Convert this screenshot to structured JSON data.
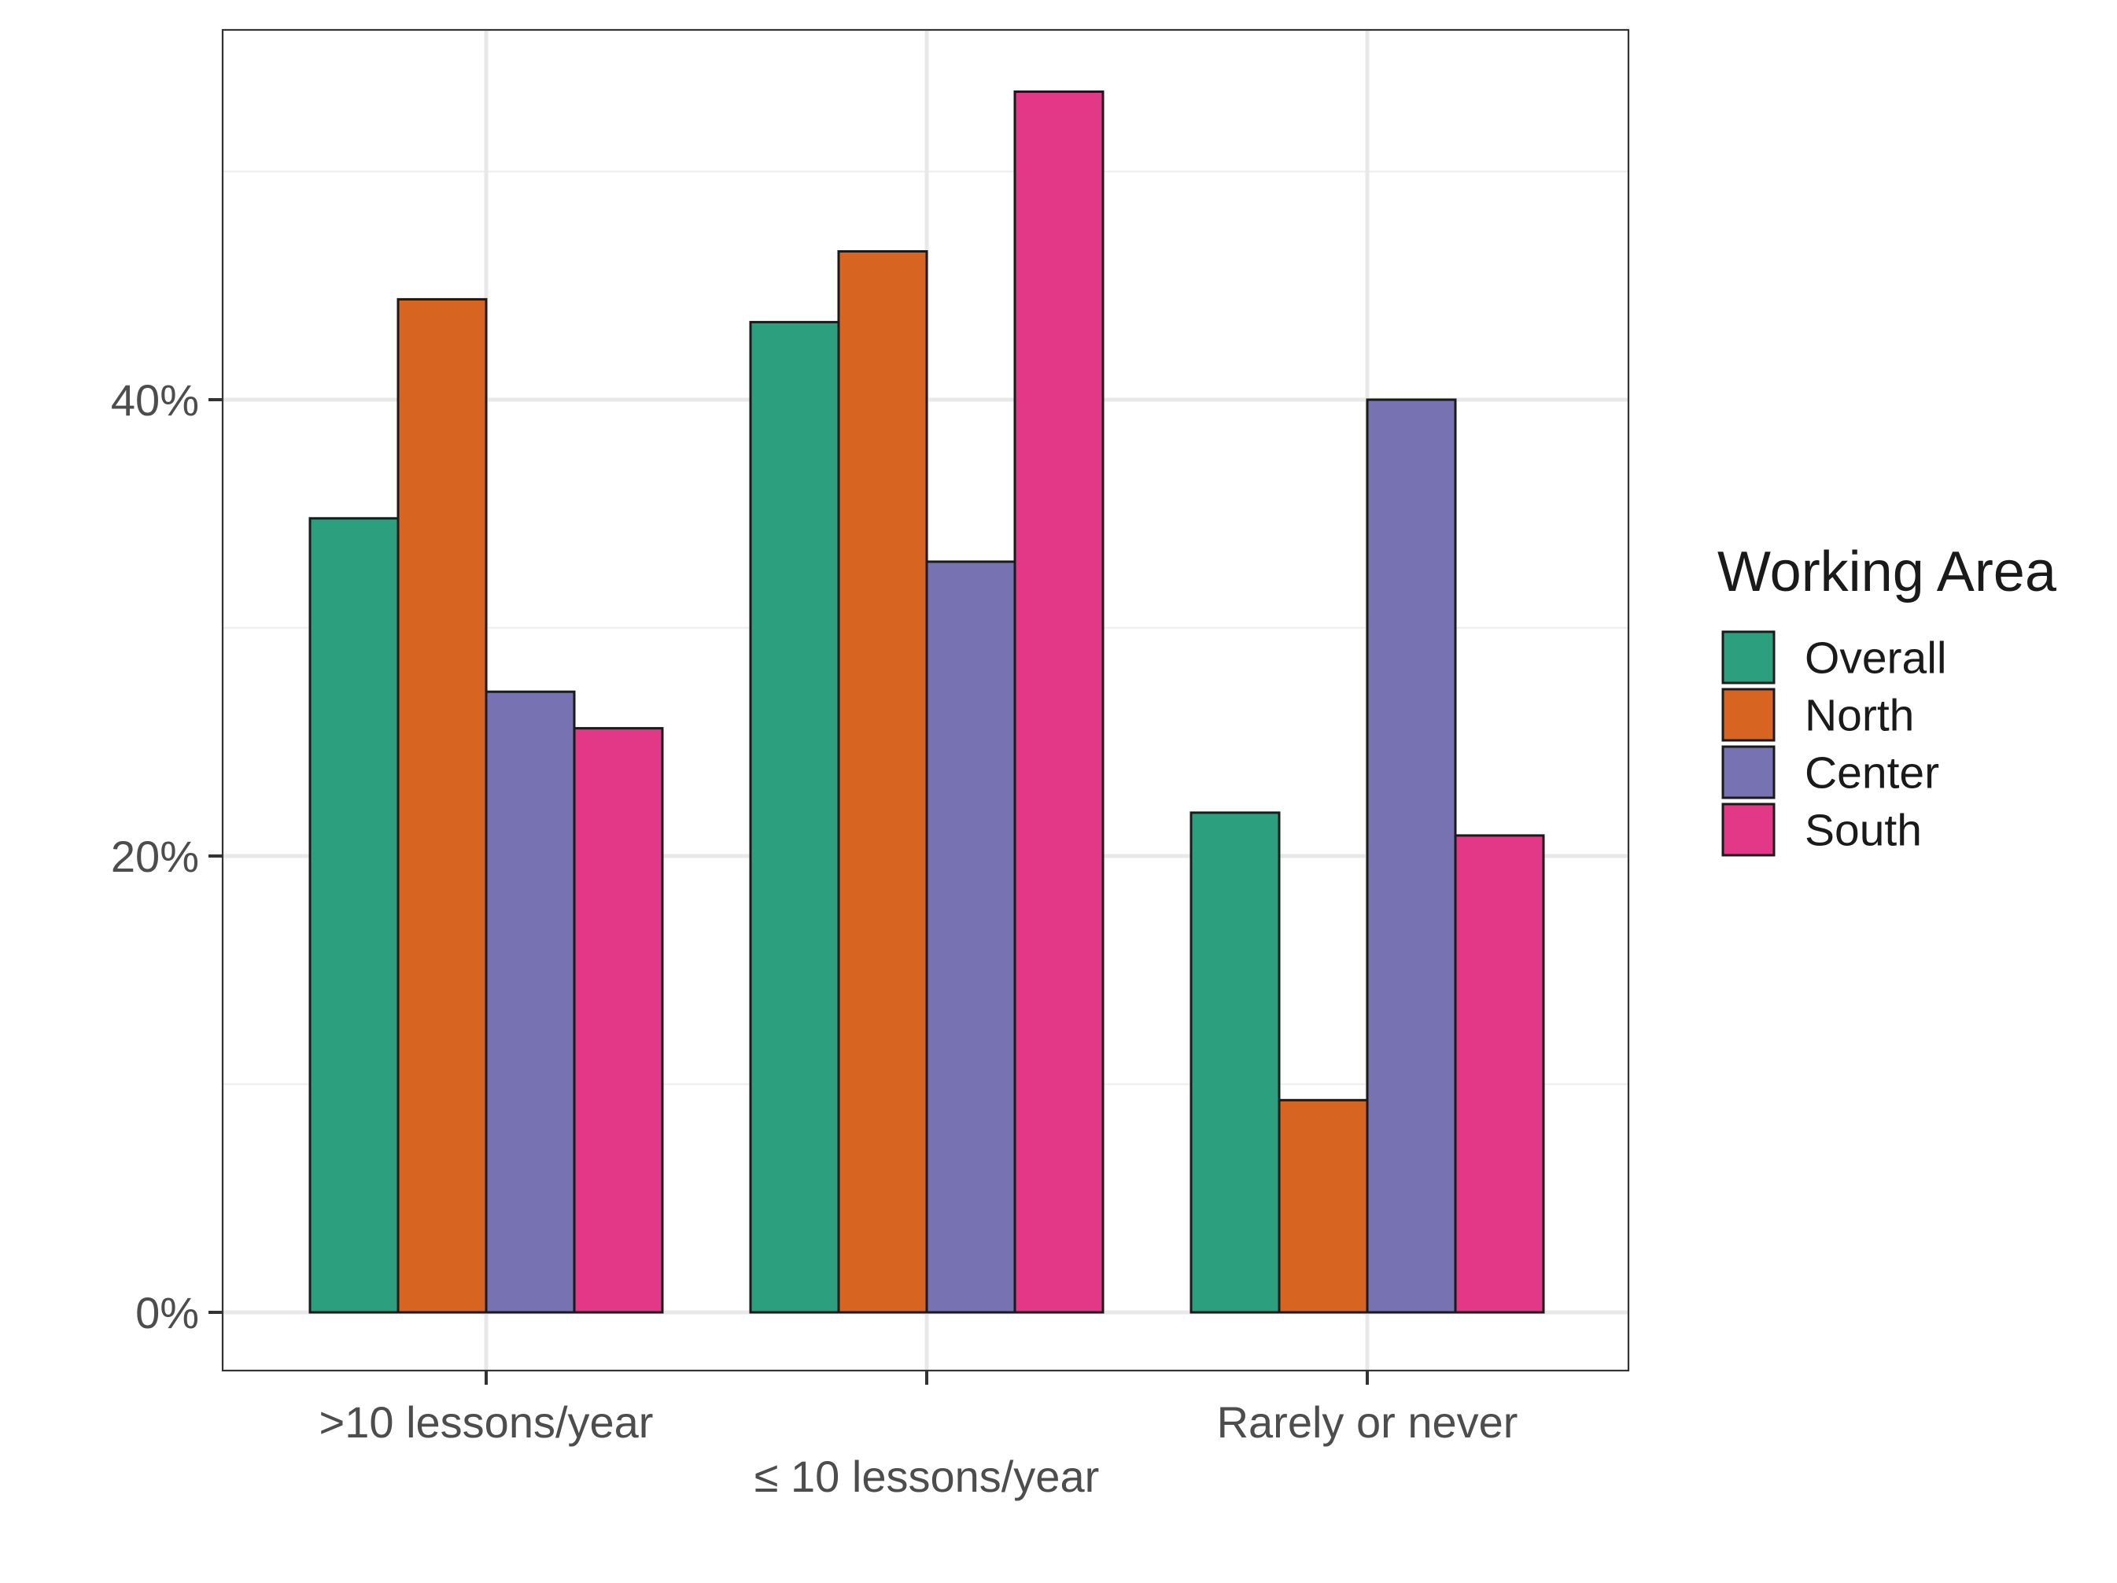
{
  "chart_data": {
    "type": "bar",
    "categories": [
      ">10 lessons/year",
      "≤ 10 lessons/year",
      "Rarely or never"
    ],
    "series": [
      {
        "name": "Overall",
        "color": "#2CA07E",
        "values": [
          34.8,
          43.4,
          21.9
        ]
      },
      {
        "name": "North",
        "color": "#D86422",
        "values": [
          44.4,
          46.5,
          9.3
        ]
      },
      {
        "name": "Center",
        "color": "#7773B2",
        "values": [
          27.2,
          32.9,
          40.0
        ]
      },
      {
        "name": "South",
        "color": "#E33788",
        "values": [
          25.6,
          53.5,
          20.9
        ]
      }
    ],
    "yticks": [
      "0%",
      "20%",
      "40%"
    ],
    "ylim": [
      0,
      56
    ],
    "xlabel": "",
    "ylabel": "",
    "grid": true,
    "legend": {
      "title": "Working Area",
      "placement": "right"
    }
  }
}
